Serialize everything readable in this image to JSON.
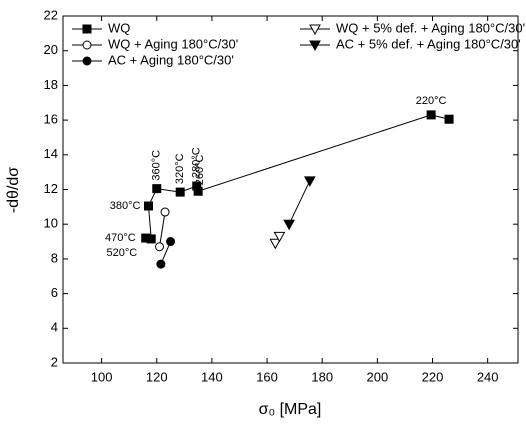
{
  "chart_data": {
    "type": "scatter",
    "xlabel": "σ₀ [MPa]",
    "ylabel": "-dθ/dσ",
    "xlim": [
      86,
      251
    ],
    "xticks": [
      100,
      120,
      140,
      160,
      180,
      200,
      220,
      240
    ],
    "ylim": [
      2,
      22
    ],
    "yticks": [
      2,
      4,
      6,
      8,
      10,
      12,
      14,
      16,
      18,
      20,
      22
    ],
    "legend": "top",
    "series": [
      {
        "name": "WQ",
        "color": "#000000",
        "marker": "square",
        "filled": true,
        "line": true,
        "x": [
          116,
          118,
          117,
          120,
          128.5,
          134.5,
          135,
          219.5,
          226
        ],
        "values": [
          9.2,
          9.15,
          11.05,
          12.05,
          11.85,
          12.2,
          11.9,
          16.3,
          16.05
        ],
        "labels": [
          "470°C",
          "520°C",
          "380°C",
          "360°C",
          "320°C",
          "280°C",
          "260°C",
          "220°C",
          null
        ]
      },
      {
        "name": "WQ + Aging 180°C/30'",
        "color": "#000000",
        "marker": "circle",
        "filled": false,
        "line": true,
        "x": [
          121,
          123
        ],
        "values": [
          8.7,
          10.7
        ]
      },
      {
        "name": "AC + Aging 180°C/30'",
        "color": "#000000",
        "marker": "circle",
        "filled": true,
        "line": true,
        "x": [
          121.5,
          125
        ],
        "values": [
          7.7,
          9.0
        ]
      },
      {
        "name": "WQ + 5% def. + Aging 180°C/30'",
        "color": "#000000",
        "marker": "triangle-down",
        "filled": false,
        "line": true,
        "x": [
          163,
          164.5
        ],
        "values": [
          8.9,
          9.3
        ]
      },
      {
        "name": "AC + 5% def. + Aging 180°C/30'",
        "color": "#000000",
        "marker": "triangle-down",
        "filled": true,
        "line": true,
        "x": [
          168,
          175.5
        ],
        "values": [
          10.0,
          12.5
        ]
      }
    ]
  }
}
